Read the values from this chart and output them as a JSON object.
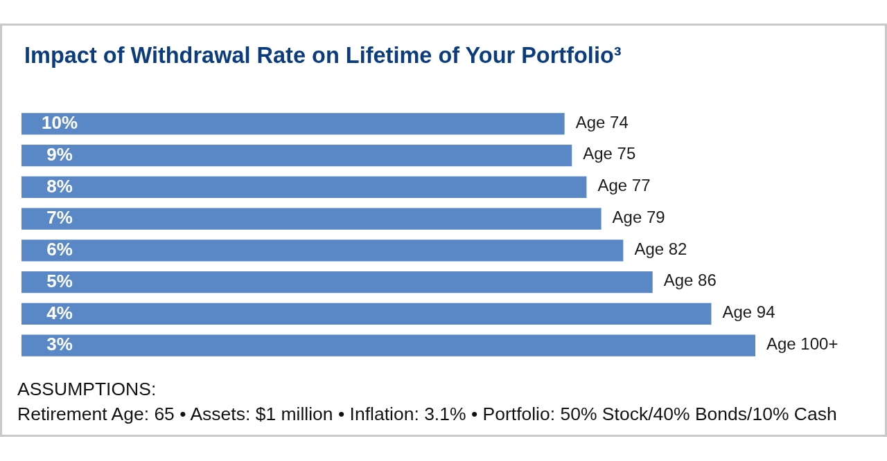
{
  "chart_data": {
    "type": "bar",
    "orientation": "horizontal",
    "title": "Impact of Withdrawal Rate on Lifetime of Your Portfolio³",
    "categories": [
      "10%",
      "9%",
      "8%",
      "7%",
      "6%",
      "5%",
      "4%",
      "3%"
    ],
    "values": [
      74,
      75,
      77,
      79,
      82,
      86,
      94,
      100
    ],
    "value_labels": [
      "Age 74",
      "Age 75",
      "Age 77",
      "Age 79",
      "Age 82",
      "Age 86",
      "Age 94",
      "Age 100+"
    ],
    "color": "#5a88c6",
    "tick_labels": "y",
    "annotations": [
      "ASSUMPTIONS:",
      "Retirement Age: 65 • Assets: $1 million • Inflation: 3.1% • Portfolio: 50% Stock/40% Bonds/10% Cash"
    ]
  }
}
